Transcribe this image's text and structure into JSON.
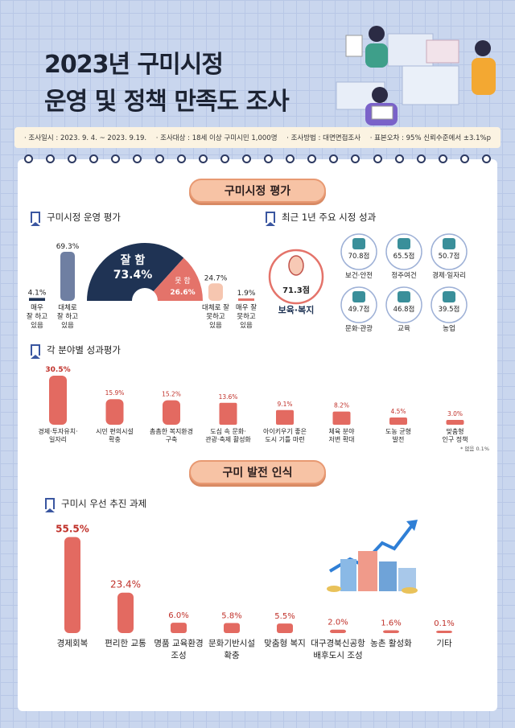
{
  "header": {
    "title_line1": "2023년 구미시정",
    "title_line2": "운영 및 정책 만족도 조사"
  },
  "survey_info": {
    "period": "· 조사일시 : 2023. 9. 4. ~ 2023. 9.19.",
    "target": "· 조사대상 : 18세 이상 구미시민 1,000명",
    "method": "· 조사방법 : 대면면접조사",
    "error": "· 표본오차 : 95% 신뢰수준에서 ±3.1%p"
  },
  "section1": {
    "title": "구미시정 평가"
  },
  "section2": {
    "title": "구미 발전 인식"
  },
  "operation_eval": {
    "title": "구미시정 운영 평가",
    "good_label": "잘 함",
    "good_value": "73.4%",
    "bad_label": "못 함",
    "bad_value": "26.6%",
    "colors": {
      "good": "#1f3354",
      "bad": "#e4736a"
    }
  },
  "recent_achievements": {
    "title": "최근 1년 주요 시정 성과",
    "main": {
      "value": "71.3점",
      "label": "보육·복지",
      "icon": "baby-icon"
    },
    "items": [
      {
        "value": "70.8점",
        "label": "보건·안전",
        "icon": "health-icon"
      },
      {
        "value": "65.5점",
        "label": "정주여건",
        "icon": "building-icon"
      },
      {
        "value": "50.7점",
        "label": "경제·일자리",
        "icon": "worker-icon"
      },
      {
        "value": "49.7점",
        "label": "문화·관광",
        "icon": "culture-icon"
      },
      {
        "value": "46.8점",
        "label": "교육",
        "icon": "book-icon"
      },
      {
        "value": "39.5점",
        "label": "농업",
        "icon": "grape-icon"
      }
    ]
  },
  "field_eval": {
    "title": "각 분야별 성과평가",
    "note": "* 없음 0.1%"
  },
  "priority": {
    "title": "구미시 우선 추진 과제"
  },
  "chart_data": [
    {
      "type": "bar",
      "title": "구미시정 운영 평가",
      "categories": [
        "매우 잘 하고 있음",
        "대체로 잘 하고 있음",
        "대체로 잘 못하고 있음",
        "매우 잘 못하고 있음"
      ],
      "labels": [
        "4.1%",
        "69.3%",
        "24.7%",
        "1.9%"
      ],
      "values": [
        4.1,
        69.3,
        24.7,
        1.9
      ],
      "colors": [
        "#1f3354",
        "#6f7fa2",
        "#f6c6b0",
        "#e4736a"
      ]
    },
    {
      "type": "bar",
      "title": "각 분야별 성과평가",
      "categories": [
        "경제·투자유치·일자리",
        "시민 편의시설 확충",
        "촘촘한 복지환경 구축",
        "도심 속 문화·관광·축제 활성화",
        "아이키우기 좋은 도시 기틀 마련",
        "체육 분야 저변 확대",
        "도농 균형 발전",
        "맞춤형 인구 정책"
      ],
      "labels": [
        "30.5%",
        "15.9%",
        "15.2%",
        "13.6%",
        "9.1%",
        "8.2%",
        "4.5%",
        "3.0%"
      ],
      "values": [
        30.5,
        15.9,
        15.2,
        13.6,
        9.1,
        8.2,
        4.5,
        3.0
      ]
    },
    {
      "type": "bar",
      "title": "구미시 우선 추진 과제",
      "categories": [
        "경제회복",
        "편리한 교통",
        "명품 교육환경 조성",
        "문화기반시설 확충",
        "맞춤형 복지",
        "대구경북신공항 배후도시 조성",
        "농촌 활성화",
        "기타"
      ],
      "labels": [
        "55.5%",
        "23.4%",
        "6.0%",
        "5.8%",
        "5.5%",
        "2.0%",
        "1.6%",
        "0.1%"
      ],
      "values": [
        55.5,
        23.4,
        6.0,
        5.8,
        5.5,
        2.0,
        1.6,
        0.1
      ]
    }
  ]
}
